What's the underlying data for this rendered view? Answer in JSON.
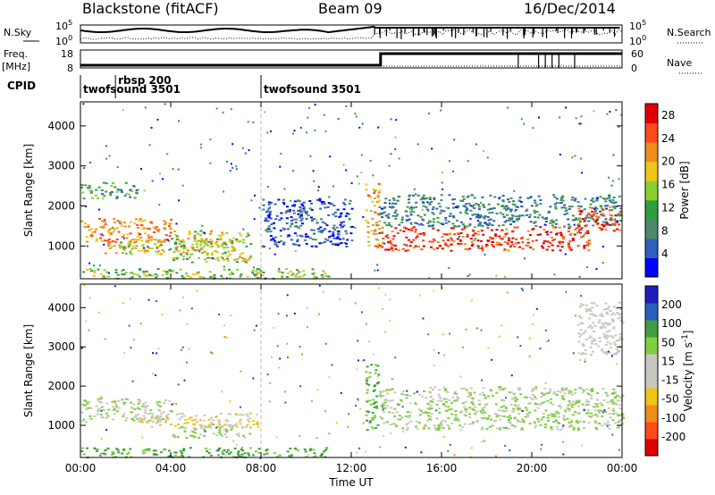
{
  "header": {
    "station": "Blackstone (fitACF)",
    "beam": "Beam 09",
    "date": "16/Dec/2014"
  },
  "panels": {
    "nsky_label": "N.Sky",
    "nsearch_label": "N.Search",
    "freq_label_line1": "Freq.",
    "freq_label_line2": "[MHz]",
    "nave_label": "Nave",
    "cpid_label": "CPID",
    "noise_ticks_left": [
      "10^5",
      "10^0"
    ],
    "noise_ticks_right": [
      "10^5",
      "10^0"
    ],
    "freq_ticks_left": [
      "18",
      "8"
    ],
    "freq_ticks_right": [
      "60",
      "0"
    ]
  },
  "cpid_events": [
    {
      "label": "twofsound 3501",
      "hour": 0.0
    },
    {
      "label": "rbsp 200",
      "hour": 1.55
    },
    {
      "label": "twofsound 3501",
      "hour": 8.0
    }
  ],
  "colors": {
    "power_scale": [
      "#0000ff",
      "#2f5fbf",
      "#4a8a6a",
      "#2f9e3f",
      "#8ccf2f",
      "#f0c419",
      "#f08c1a",
      "#ff4a1a",
      "#e00000"
    ],
    "velocity_scale": [
      "#1e1ebf",
      "#2a5fbf",
      "#3f9f3f",
      "#7fcf3f",
      "#c8c8c0",
      "#c8c8c0",
      "#f0c419",
      "#f08c1a",
      "#ff4a1a",
      "#e00000"
    ]
  },
  "chart_data": [
    {
      "type": "heatmap",
      "title": "Power",
      "xlabel": "",
      "ylabel": "Slant Range [km]",
      "xlim": [
        0,
        24
      ],
      "ylim": [
        180,
        4600
      ],
      "x_ticks": [
        "00:00",
        "04:00",
        "08:00",
        "12:00",
        "16:00",
        "20:00",
        "00:00"
      ],
      "y_ticks": [
        1000,
        2000,
        3000,
        4000
      ],
      "colorbar_label": "Power [dB]",
      "colorbar_ticks": [
        4,
        8,
        12,
        16,
        20,
        24,
        28
      ],
      "colorbar_range": [
        0,
        30
      ],
      "regions": [
        {
          "x": [
            0.0,
            4.0
          ],
          "range": [
            1100,
            1700
          ],
          "value": 22
        },
        {
          "x": [
            1.0,
            6.5
          ],
          "range": [
            800,
            1200
          ],
          "value": 18
        },
        {
          "x": [
            4.0,
            7.5
          ],
          "range": [
            600,
            1400
          ],
          "value": 16
        },
        {
          "x": [
            0.0,
            2.5
          ],
          "range": [
            2200,
            2600
          ],
          "value": 10
        },
        {
          "x": [
            0.0,
            11.0
          ],
          "range": [
            200,
            450
          ],
          "value": 14
        },
        {
          "x": [
            8.0,
            12.0
          ],
          "range": [
            1000,
            2200
          ],
          "value": 5
        },
        {
          "x": [
            12.6,
            13.2
          ],
          "range": [
            900,
            2600
          ],
          "value": 20
        },
        {
          "x": [
            13.2,
            22.5
          ],
          "range": [
            900,
            1500
          ],
          "value": 26
        },
        {
          "x": [
            13.2,
            24.0
          ],
          "range": [
            1500,
            2300
          ],
          "value": 8
        },
        {
          "x": [
            22.0,
            24.0
          ],
          "range": [
            1400,
            2000
          ],
          "value": 26
        }
      ]
    },
    {
      "type": "heatmap",
      "title": "Velocity",
      "xlabel": "Time UT",
      "ylabel": "Slant Range [km]",
      "xlim": [
        0,
        24
      ],
      "ylim": [
        180,
        4600
      ],
      "x_ticks": [
        "00:00",
        "04:00",
        "08:00",
        "12:00",
        "16:00",
        "20:00",
        "00:00"
      ],
      "y_ticks": [
        1000,
        2000,
        3000,
        4000
      ],
      "colorbar_label": "Velocity [m s",
      "colorbar_unit_exponent": "-1",
      "colorbar_ticks": [
        200,
        100,
        50,
        15,
        -15,
        -50,
        -100,
        -200
      ],
      "regions": [
        {
          "x": [
            0.0,
            4.0
          ],
          "range": [
            1100,
            1700
          ],
          "value": 0
        },
        {
          "x": [
            2.5,
            7.8
          ],
          "range": [
            950,
            1350
          ],
          "value": -70
        },
        {
          "x": [
            4.0,
            7.5
          ],
          "range": [
            700,
            1000
          ],
          "value": 0
        },
        {
          "x": [
            0.0,
            11.0
          ],
          "range": [
            200,
            450
          ],
          "value": 40
        },
        {
          "x": [
            12.6,
            13.2
          ],
          "range": [
            900,
            2600
          ],
          "value": 30
        },
        {
          "x": [
            13.2,
            24.0
          ],
          "range": [
            900,
            2000
          ],
          "value": 0
        },
        {
          "x": [
            22.0,
            24.0
          ],
          "range": [
            2800,
            4200
          ],
          "value": -40
        }
      ]
    }
  ]
}
